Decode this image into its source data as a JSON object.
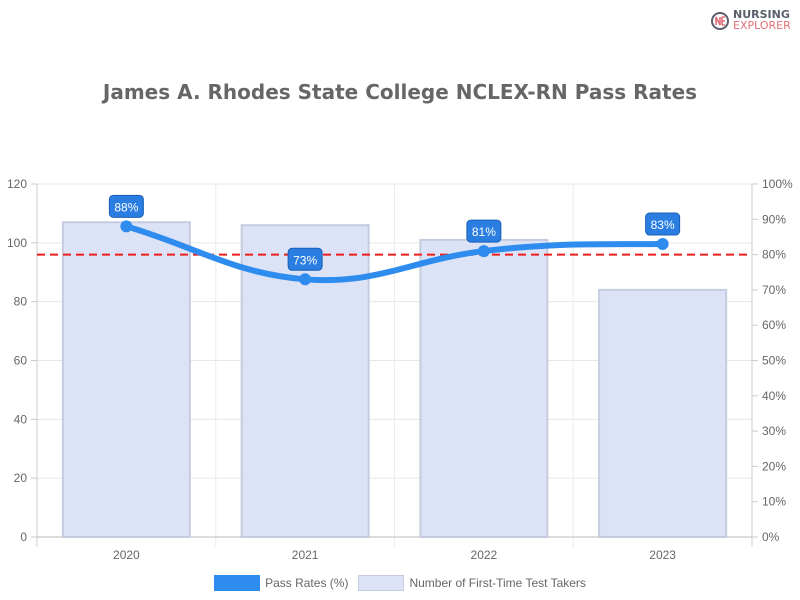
{
  "logo": {
    "line1": "NURSING",
    "line2": "EXPLORER"
  },
  "chart_data": {
    "type": "bar+line",
    "title": "James A. Rhodes State College NCLEX-RN Pass Rates",
    "categories": [
      "2020",
      "2021",
      "2022",
      "2023"
    ],
    "series": [
      {
        "name": "Pass Rates (%)",
        "type": "line",
        "axis": "right",
        "values": [
          88,
          73,
          81,
          83
        ],
        "color": "#2f8cef",
        "data_labels": [
          "88%",
          "73%",
          "81%",
          "83%"
        ]
      },
      {
        "name": "Number of First-Time Test Takers",
        "type": "bar",
        "axis": "left",
        "values": [
          107,
          106,
          101,
          84
        ],
        "color": "#dce3f7"
      }
    ],
    "left_axis": {
      "ylim": [
        0,
        120
      ],
      "ticks": [
        "0",
        "20",
        "40",
        "60",
        "80",
        "100",
        "120"
      ]
    },
    "right_axis": {
      "ylim": [
        0,
        100
      ],
      "ticks": [
        "0%",
        "10%",
        "20%",
        "30%",
        "40%",
        "50%",
        "60%",
        "70%",
        "80%",
        "90%",
        "100%"
      ]
    },
    "reference_line": {
      "value": 80,
      "axis": "right",
      "color": "#ee1c1c",
      "style": "dashed"
    },
    "grid": true,
    "legend": "bottom"
  }
}
